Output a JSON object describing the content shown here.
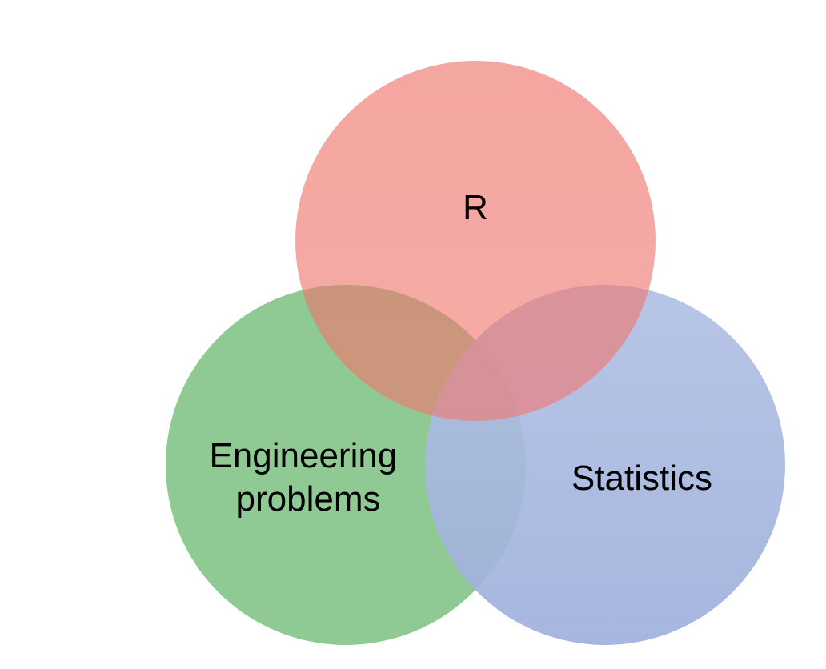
{
  "diagram": {
    "type": "venn",
    "circles": [
      {
        "id": "r",
        "label_lines": [
          "R"
        ],
        "color": "#EA4A3C"
      },
      {
        "id": "engineering",
        "label_lines": [
          "Engineering",
          "problems"
        ],
        "color": "#5BB35F"
      },
      {
        "id": "statistics",
        "label_lines": [
          "Statistics"
        ],
        "color": "#7F96D0"
      }
    ]
  }
}
